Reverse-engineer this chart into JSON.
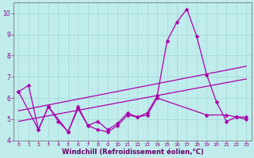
{
  "xlabel": "Windchill (Refroidissement éolien,°C)",
  "bg_color": "#c0ecec",
  "line_color": "#aa00aa",
  "grid_color": "#aadddd",
  "tick_label_color": "#880088",
  "axis_label_color": "#660066",
  "xlim": [
    -0.5,
    23.5
  ],
  "ylim": [
    4,
    10.5
  ],
  "yticks": [
    4,
    5,
    6,
    7,
    8,
    9,
    10
  ],
  "xticks": [
    0,
    1,
    2,
    3,
    4,
    5,
    6,
    7,
    8,
    9,
    10,
    11,
    12,
    13,
    14,
    15,
    16,
    17,
    18,
    19,
    20,
    21,
    22,
    23
  ],
  "curve1_x": [
    0,
    1,
    2,
    3,
    4,
    5,
    6,
    7,
    8,
    9,
    10,
    11,
    12,
    13,
    14,
    15,
    16,
    17,
    18,
    19,
    20,
    21,
    22,
    23
  ],
  "curve1_y": [
    6.3,
    6.6,
    4.5,
    5.6,
    4.9,
    4.4,
    5.6,
    4.7,
    4.5,
    4.4,
    4.7,
    5.2,
    5.1,
    5.3,
    6.1,
    8.7,
    9.6,
    10.2,
    8.9,
    7.1,
    5.8,
    4.9,
    5.1,
    5.0
  ],
  "curve2_x": [
    0,
    2,
    3,
    5,
    6,
    7,
    8,
    9,
    10,
    11,
    12,
    13,
    14,
    19,
    21,
    22,
    23
  ],
  "curve2_y": [
    6.3,
    4.5,
    5.6,
    4.4,
    5.5,
    4.7,
    4.9,
    4.5,
    4.8,
    5.3,
    5.1,
    5.2,
    6.0,
    5.2,
    5.2,
    5.1,
    5.1
  ],
  "line1_x": [
    0,
    23
  ],
  "line1_y": [
    5.4,
    7.5
  ],
  "line2_x": [
    0,
    23
  ],
  "line2_y": [
    4.9,
    6.9
  ],
  "markersize": 2.5,
  "linewidth": 0.9,
  "spine_color": "#777777"
}
